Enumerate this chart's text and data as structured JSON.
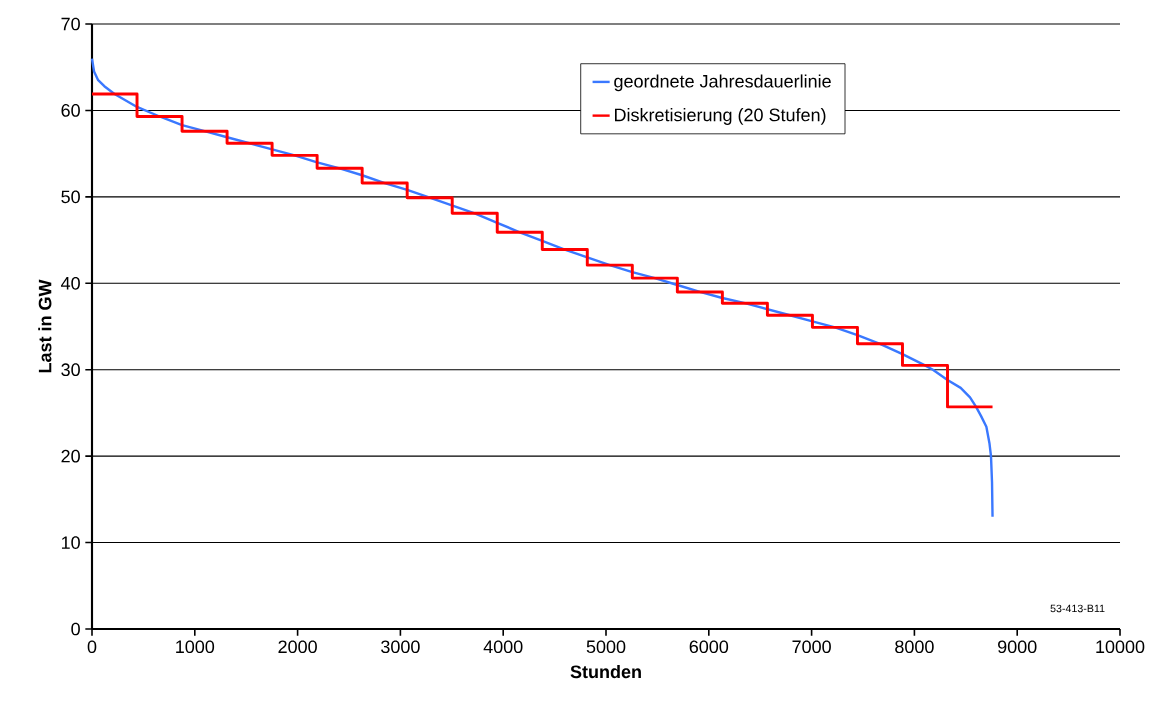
{
  "chart_data": {
    "type": "line",
    "xlabel": "Stunden",
    "ylabel": "Last in GW",
    "xlim": [
      0,
      10000
    ],
    "ylim": [
      0,
      70
    ],
    "xticks": [
      0,
      1000,
      2000,
      3000,
      4000,
      5000,
      6000,
      7000,
      8000,
      9000,
      10000
    ],
    "yticks": [
      0,
      10,
      20,
      30,
      40,
      50,
      60,
      70
    ],
    "grid": "y",
    "legend": "top right",
    "annotations": [
      "53-413-B11"
    ],
    "series": [
      {
        "name": "geordnete Jahresdauerlinie",
        "color": "#3a78ff",
        "x": [
          0,
          20,
          60,
          120,
          219,
          438,
          657,
          876,
          1095,
          1314,
          1533,
          1752,
          1971,
          2190,
          2409,
          2628,
          2847,
          3066,
          3285,
          3504,
          3723,
          3942,
          4161,
          4380,
          4599,
          4818,
          5037,
          5256,
          5475,
          5694,
          5913,
          6132,
          6351,
          6570,
          6789,
          7008,
          7227,
          7446,
          7665,
          7884,
          8103,
          8180,
          8322,
          8450,
          8541,
          8600,
          8650,
          8700,
          8730,
          8745,
          8755,
          8760
        ],
        "values": [
          66,
          64.5,
          63.5,
          62.8,
          61.9,
          60.4,
          59.3,
          58.3,
          57.6,
          56.9,
          56.2,
          55.5,
          54.8,
          54.0,
          53.3,
          52.5,
          51.6,
          50.8,
          49.9,
          49.0,
          48.1,
          47.0,
          45.9,
          44.9,
          43.9,
          43.0,
          42.1,
          41.3,
          40.6,
          39.8,
          39.0,
          38.3,
          37.7,
          37.0,
          36.3,
          35.6,
          34.9,
          34.0,
          33.0,
          31.8,
          30.5,
          30.0,
          28.8,
          27.9,
          26.8,
          25.7,
          24.6,
          23.4,
          21.5,
          20,
          17,
          13
        ]
      },
      {
        "name": "Diskretisierung (20 Stufen)",
        "type": "step",
        "color": "#ff0000",
        "x": [
          0,
          438,
          876,
          1314,
          1752,
          2190,
          2628,
          3066,
          3504,
          3942,
          4380,
          4818,
          5256,
          5694,
          6132,
          6570,
          7008,
          7446,
          7884,
          8322,
          8760
        ],
        "values": [
          61.9,
          59.3,
          57.6,
          56.2,
          54.8,
          53.3,
          51.6,
          49.9,
          48.1,
          45.9,
          43.9,
          42.1,
          40.6,
          39.0,
          37.7,
          36.3,
          34.9,
          33.0,
          30.5,
          25.7,
          25.7
        ]
      }
    ]
  }
}
